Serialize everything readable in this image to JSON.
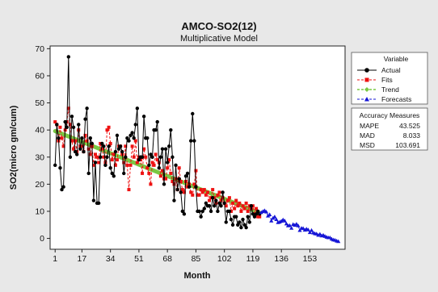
{
  "chart_data": {
    "type": "line",
    "title": "AMCO-SO2(12)",
    "subtitle": "Multiplicative Model",
    "xlabel": "Month",
    "ylabel": "SO2(micro gm/cum)",
    "xlim": [
      -2,
      174
    ],
    "ylim": [
      -4,
      71
    ],
    "x_ticks": [
      1,
      17,
      34,
      51,
      68,
      85,
      102,
      119,
      136,
      153
    ],
    "y_ticks": [
      0,
      10,
      20,
      30,
      40,
      50,
      60,
      70
    ],
    "grid": false,
    "legend_placement": "top-right",
    "legend": {
      "title": "Variable",
      "entries": [
        "Actual",
        "Fits",
        "Trend",
        "Forecasts"
      ]
    },
    "accuracy": {
      "title": "Accuracy Measures",
      "rows": [
        {
          "label": "MAPE",
          "value": "43.525"
        },
        {
          "label": "MAD",
          "value": "8.033"
        },
        {
          "label": "MSD",
          "value": "103.691"
        }
      ]
    },
    "colors": {
      "actual": "#000000",
      "fits": "#ee1111",
      "trend": "#7ac943",
      "forecasts": "#1515d6",
      "plot_bg": "#ffffff",
      "figure_bg": "#e8e8e8"
    },
    "series": [
      {
        "name": "Actual",
        "x": [
          1,
          2,
          3,
          4,
          5,
          6,
          7,
          8,
          9,
          10,
          11,
          12,
          13,
          14,
          15,
          16,
          17,
          18,
          19,
          20,
          21,
          22,
          23,
          24,
          25,
          26,
          27,
          28,
          29,
          30,
          31,
          32,
          33,
          34,
          35,
          36,
          37,
          38,
          39,
          40,
          41,
          42,
          43,
          44,
          45,
          46,
          47,
          48,
          49,
          50,
          51,
          52,
          53,
          54,
          55,
          56,
          57,
          58,
          59,
          60,
          61,
          62,
          63,
          64,
          65,
          66,
          67,
          68,
          69,
          70,
          71,
          72,
          73,
          74,
          75,
          76,
          77,
          78,
          79,
          80,
          81,
          82,
          83,
          84,
          85,
          86,
          87,
          88,
          89,
          90,
          91,
          92,
          93,
          94,
          95,
          96,
          97,
          98,
          99,
          100,
          101,
          102,
          103,
          104,
          105,
          106,
          107,
          108,
          109,
          110,
          111,
          112,
          113,
          114,
          115,
          116,
          117,
          118,
          119,
          120,
          121,
          122,
          123
        ],
        "values": [
          27,
          42,
          37,
          26,
          18,
          19,
          43,
          41,
          67,
          30,
          45,
          41,
          32,
          31,
          42,
          33,
          37,
          32,
          44,
          48,
          24,
          37,
          35,
          14,
          28,
          13,
          13,
          30,
          35,
          34,
          27,
          30,
          34,
          26,
          24,
          23,
          32,
          38,
          33,
          34,
          32,
          24,
          30,
          37,
          36,
          38,
          39,
          37,
          42,
          48,
          29,
          30,
          30,
          45,
          37,
          37,
          27,
          31,
          30,
          40,
          40,
          43,
          26,
          30,
          33,
          20,
          33,
          28,
          34,
          40,
          30,
          14,
          27,
          18,
          22,
          17,
          10,
          9,
          23,
          24,
          19,
          36,
          46,
          36,
          19,
          10,
          10,
          8,
          10,
          11,
          13,
          12,
          12,
          10,
          15,
          12,
          14,
          10,
          13,
          12,
          17,
          13,
          6,
          10,
          10,
          7,
          5,
          8,
          8,
          5,
          6,
          4,
          7,
          5,
          4,
          8,
          6,
          12,
          9,
          8,
          9,
          10,
          9
        ]
      },
      {
        "name": "Fits",
        "x": [
          1,
          2,
          3,
          4,
          5,
          6,
          7,
          8,
          9,
          10,
          11,
          12,
          13,
          14,
          15,
          16,
          17,
          18,
          19,
          20,
          21,
          22,
          23,
          24,
          25,
          26,
          27,
          28,
          29,
          30,
          31,
          32,
          33,
          34,
          35,
          36,
          37,
          38,
          39,
          40,
          41,
          42,
          43,
          44,
          45,
          46,
          47,
          48,
          49,
          50,
          51,
          52,
          53,
          54,
          55,
          56,
          57,
          58,
          59,
          60,
          61,
          62,
          63,
          64,
          65,
          66,
          67,
          68,
          69,
          70,
          71,
          72,
          73,
          74,
          75,
          76,
          77,
          78,
          79,
          80,
          81,
          82,
          83,
          84,
          85,
          86,
          87,
          88,
          89,
          90,
          91,
          92,
          93,
          94,
          95,
          96,
          97,
          98,
          99,
          100,
          101,
          102,
          103,
          104,
          105,
          106,
          107,
          108,
          109,
          110,
          111,
          112,
          113,
          114,
          115,
          116,
          117,
          118,
          119,
          120,
          121,
          122,
          123
        ],
        "values": [
          43,
          42,
          36,
          41,
          37,
          34,
          40,
          43,
          48,
          42,
          36,
          33,
          36,
          32,
          40,
          34,
          34,
          32,
          38,
          36,
          33,
          31,
          34,
          27,
          31,
          30,
          28,
          35,
          33,
          30,
          28,
          40,
          41,
          35,
          29,
          31,
          27,
          29,
          34,
          34,
          31,
          28,
          34,
          27,
          18,
          27,
          34,
          30,
          36,
          28,
          30,
          29,
          24,
          33,
          30,
          26,
          24,
          20,
          28,
          27,
          31,
          29,
          28,
          23,
          25,
          22,
          22,
          26,
          29,
          24,
          21,
          20,
          22,
          18,
          26,
          21,
          18,
          17,
          21,
          19,
          20,
          17,
          16,
          20,
          25,
          16,
          16,
          18,
          17,
          18,
          16,
          17,
          14,
          15,
          18,
          15,
          13,
          16,
          17,
          14,
          15,
          13,
          12,
          14,
          15,
          10,
          13,
          11,
          14,
          12,
          13,
          10,
          12,
          11,
          13,
          10,
          12,
          11,
          12,
          9,
          11,
          8,
          8
        ]
      },
      {
        "name": "Trend",
        "x": [
          1,
          123
        ],
        "values": [
          39.6,
          9.4
        ]
      },
      {
        "name": "Forecasts",
        "x": [
          124,
          125,
          126,
          127,
          128,
          129,
          130,
          131,
          132,
          133,
          134,
          135,
          136,
          137,
          138,
          139,
          140,
          141,
          142,
          143,
          144,
          145,
          146,
          147,
          148,
          149,
          150,
          151,
          152,
          153,
          154,
          155,
          156,
          157,
          158,
          159,
          160,
          161,
          162,
          163,
          164,
          165,
          166,
          167,
          168,
          169,
          170
        ],
        "values": [
          9.6,
          10.0,
          10.3,
          9.8,
          8.3,
          8.8,
          6.5,
          7.5,
          8.0,
          7.0,
          5.9,
          6.1,
          6.4,
          6.9,
          6.5,
          5.4,
          4.7,
          4.8,
          3.8,
          5.2,
          4.9,
          5.3,
          4.7,
          3.0,
          3.8,
          3.7,
          3.1,
          3.5,
          3.2,
          2.2,
          3.0,
          2.1,
          1.8,
          1.7,
          1.2,
          1.6,
          1.0,
          1.2,
          0.8,
          0.5,
          0.3,
          0.3,
          -0.2,
          -0.5,
          -0.6,
          -0.9,
          -1.1
        ]
      }
    ]
  }
}
